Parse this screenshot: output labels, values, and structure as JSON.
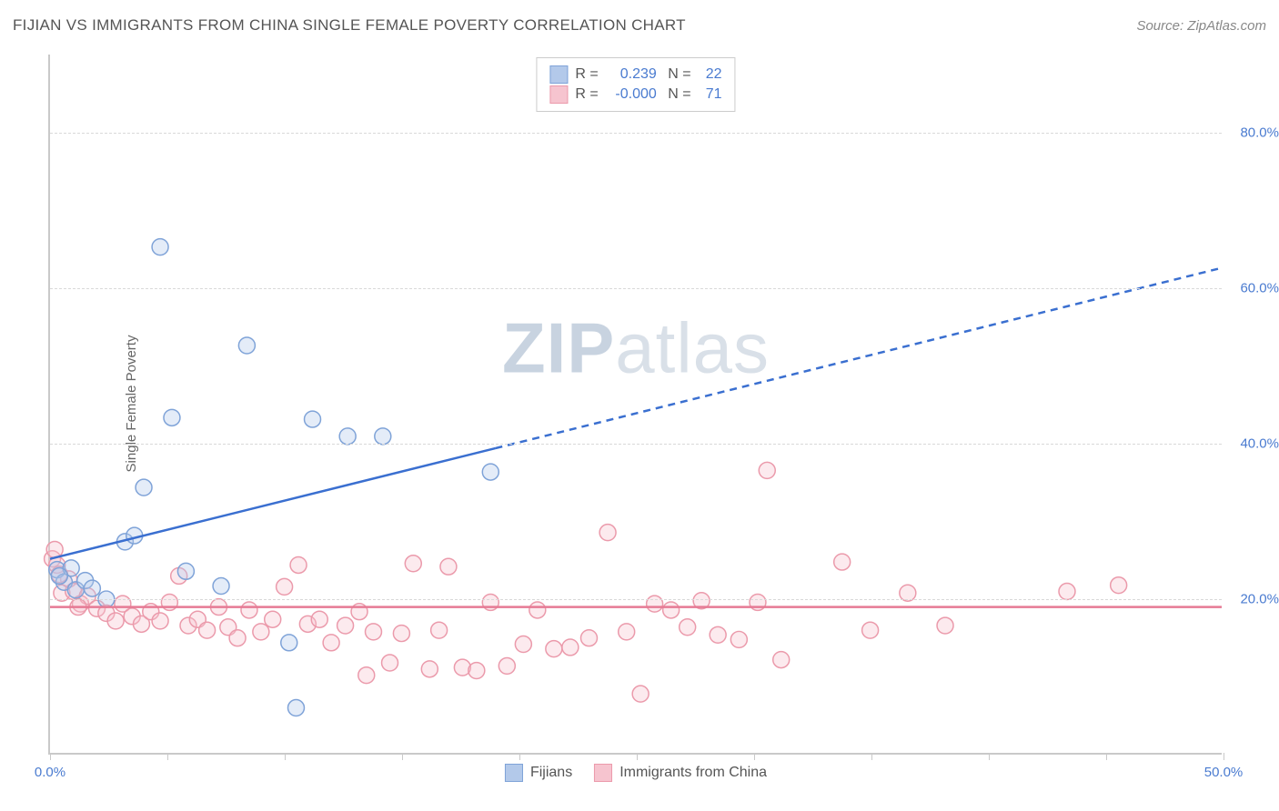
{
  "title": "FIJIAN VS IMMIGRANTS FROM CHINA SINGLE FEMALE POVERTY CORRELATION CHART",
  "source": "Source: ZipAtlas.com",
  "ylabel": "Single Female Poverty",
  "watermark_bold": "ZIP",
  "watermark_rest": "atlas",
  "chart": {
    "type": "scatter",
    "background_color": "#ffffff",
    "grid_color": "#d9d9d9",
    "axis_color": "#c9c9c9",
    "xlim": [
      0,
      50
    ],
    "ylim": [
      0,
      90
    ],
    "xticks": [
      0,
      5,
      10,
      15,
      20,
      25,
      30,
      35,
      40,
      45,
      50
    ],
    "yticks": [
      20,
      40,
      60,
      80
    ],
    "ytick_labels": [
      "20.0%",
      "40.0%",
      "60.0%",
      "80.0%"
    ],
    "xtick_labels_shown": {
      "0": "0.0%",
      "50": "50.0%"
    },
    "xtick_label_color_left": "#4a7bd0",
    "xtick_label_color_right": "#4a7bd0",
    "ytick_label_color": "#4a7bd0",
    "marker_radius": 9,
    "series": [
      {
        "name": "Fijians",
        "color_fill": "#b3c9ea",
        "color_stroke": "#7fa3d8",
        "R": "0.239",
        "N": "22",
        "points": [
          [
            0.3,
            23.6
          ],
          [
            0.6,
            22.0
          ],
          [
            0.9,
            23.8
          ],
          [
            1.1,
            21.0
          ],
          [
            1.5,
            22.2
          ],
          [
            2.4,
            19.8
          ],
          [
            3.2,
            27.2
          ],
          [
            3.6,
            28.0
          ],
          [
            4.0,
            34.2
          ],
          [
            4.7,
            65.2
          ],
          [
            5.2,
            43.2
          ],
          [
            5.8,
            23.4
          ],
          [
            7.3,
            21.5
          ],
          [
            8.4,
            52.5
          ],
          [
            10.2,
            14.2
          ],
          [
            10.5,
            5.8
          ],
          [
            11.2,
            43.0
          ],
          [
            12.7,
            40.8
          ],
          [
            14.2,
            40.8
          ],
          [
            18.8,
            36.2
          ],
          [
            1.8,
            21.2
          ],
          [
            0.4,
            22.8
          ]
        ],
        "trend": {
          "x1": 0,
          "y1": 25.0,
          "x2": 50,
          "y2": 62.5,
          "solid_until_x": 19,
          "color": "#3a6fd0",
          "width": 2.5
        }
      },
      {
        "name": "Immigrants from China",
        "color_fill": "#f6c4cf",
        "color_stroke": "#eb9aab",
        "R": "-0.000",
        "N": "71",
        "points": [
          [
            0.1,
            25.0
          ],
          [
            0.3,
            24.2
          ],
          [
            0.5,
            20.6
          ],
          [
            0.8,
            22.4
          ],
          [
            1.0,
            20.8
          ],
          [
            1.3,
            19.2
          ],
          [
            1.6,
            20.2
          ],
          [
            2.0,
            18.6
          ],
          [
            2.4,
            18.0
          ],
          [
            2.8,
            17.0
          ],
          [
            3.1,
            19.2
          ],
          [
            3.5,
            17.6
          ],
          [
            3.9,
            16.6
          ],
          [
            4.3,
            18.2
          ],
          [
            4.7,
            17.0
          ],
          [
            5.1,
            19.4
          ],
          [
            5.5,
            22.8
          ],
          [
            5.9,
            16.4
          ],
          [
            6.3,
            17.2
          ],
          [
            6.7,
            15.8
          ],
          [
            7.2,
            18.8
          ],
          [
            7.6,
            16.2
          ],
          [
            8.0,
            14.8
          ],
          [
            8.5,
            18.4
          ],
          [
            9.0,
            15.6
          ],
          [
            9.5,
            17.2
          ],
          [
            10.0,
            21.4
          ],
          [
            10.6,
            24.2
          ],
          [
            11.0,
            16.6
          ],
          [
            11.5,
            17.2
          ],
          [
            12.0,
            14.2
          ],
          [
            12.6,
            16.4
          ],
          [
            13.2,
            18.2
          ],
          [
            13.5,
            10.0
          ],
          [
            13.8,
            15.6
          ],
          [
            14.5,
            11.6
          ],
          [
            15.0,
            15.4
          ],
          [
            15.5,
            24.4
          ],
          [
            16.2,
            10.8
          ],
          [
            16.6,
            15.8
          ],
          [
            17.0,
            24.0
          ],
          [
            17.6,
            11.0
          ],
          [
            18.2,
            10.6
          ],
          [
            18.8,
            19.4
          ],
          [
            19.5,
            11.2
          ],
          [
            20.2,
            14.0
          ],
          [
            20.8,
            18.4
          ],
          [
            21.5,
            13.4
          ],
          [
            22.2,
            13.6
          ],
          [
            23.0,
            14.8
          ],
          [
            23.8,
            28.4
          ],
          [
            24.6,
            15.6
          ],
          [
            25.2,
            7.6
          ],
          [
            25.8,
            19.2
          ],
          [
            26.5,
            18.4
          ],
          [
            27.2,
            16.2
          ],
          [
            27.8,
            19.6
          ],
          [
            28.5,
            15.2
          ],
          [
            29.4,
            14.6
          ],
          [
            30.2,
            19.4
          ],
          [
            30.6,
            36.4
          ],
          [
            31.2,
            12.0
          ],
          [
            33.8,
            24.6
          ],
          [
            35.0,
            15.8
          ],
          [
            36.6,
            20.6
          ],
          [
            38.2,
            16.4
          ],
          [
            43.4,
            20.8
          ],
          [
            45.6,
            21.6
          ],
          [
            0.2,
            26.2
          ],
          [
            0.4,
            23.0
          ],
          [
            1.2,
            18.8
          ]
        ],
        "trend": {
          "x1": 0,
          "y1": 18.8,
          "x2": 50,
          "y2": 18.8,
          "solid_until_x": 50,
          "color": "#e67a94",
          "width": 2.5
        }
      }
    ]
  },
  "legend_swatches": [
    {
      "fill": "#b3c9ea",
      "stroke": "#7fa3d8"
    },
    {
      "fill": "#f6c4cf",
      "stroke": "#eb9aab"
    }
  ]
}
